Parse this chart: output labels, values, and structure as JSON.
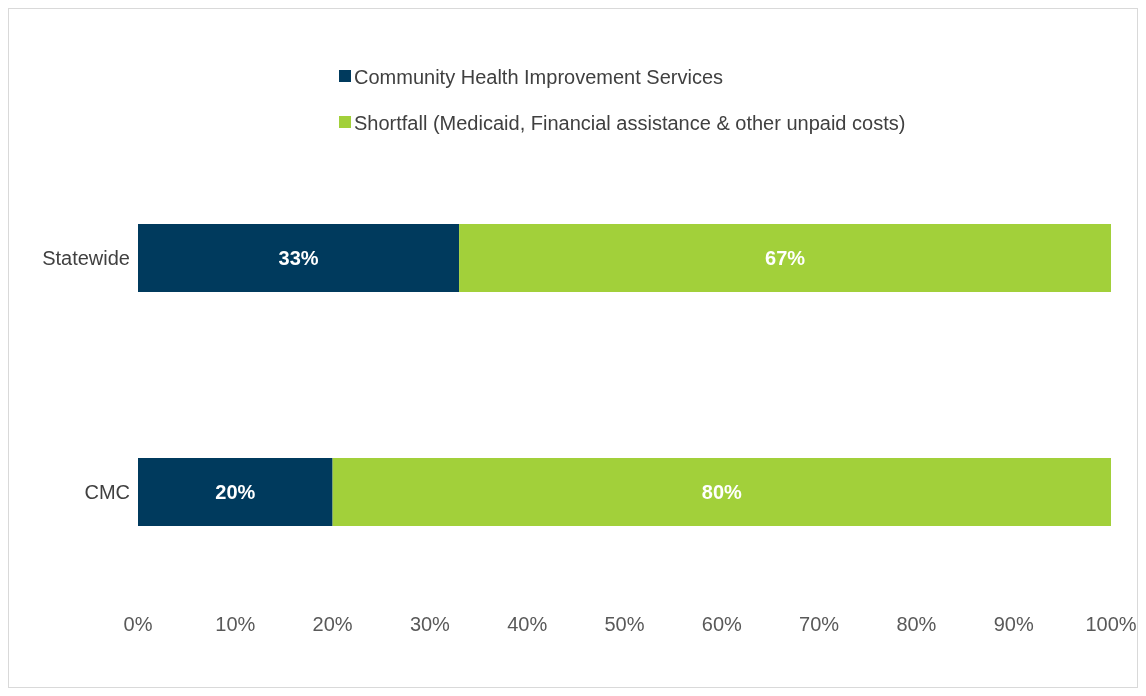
{
  "chart_data": {
    "type": "bar",
    "orientation": "horizontal",
    "stacked": true,
    "categories": [
      "Statewide",
      "CMC"
    ],
    "series": [
      {
        "name": "Community Health Improvement Services",
        "color": "#003a5d",
        "values": [
          33,
          20
        ],
        "value_labels": [
          "33%",
          "20%"
        ]
      },
      {
        "name": "Shortfall (Medicaid, Financial assistance & other unpaid costs)",
        "color": "#a2d03a",
        "values": [
          67,
          80
        ],
        "value_labels": [
          "67%",
          "80%"
        ]
      }
    ],
    "xlim": [
      0,
      100
    ],
    "xticks": [
      {
        "value": 0,
        "label": "0%"
      },
      {
        "value": 10,
        "label": "10%"
      },
      {
        "value": 20,
        "label": "20%"
      },
      {
        "value": 30,
        "label": "30%"
      },
      {
        "value": 40,
        "label": "40%"
      },
      {
        "value": 50,
        "label": "50%"
      },
      {
        "value": 60,
        "label": "60%"
      },
      {
        "value": 70,
        "label": "70%"
      },
      {
        "value": 80,
        "label": "80%"
      },
      {
        "value": 90,
        "label": "90%"
      },
      {
        "value": 100,
        "label": "100%"
      }
    ],
    "legend": "top",
    "grid": false
  }
}
